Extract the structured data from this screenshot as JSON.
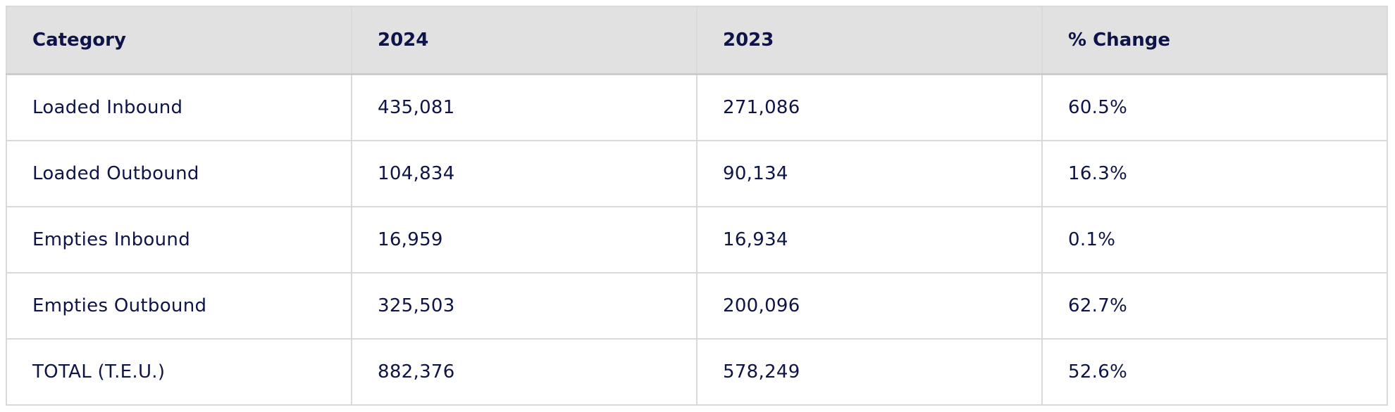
{
  "table": {
    "header": [
      "Category",
      "2024",
      "2023",
      "% Change"
    ],
    "rows": [
      [
        "Loaded Inbound",
        "435,081",
        "271,086",
        "60.5%"
      ],
      [
        "Loaded Outbound",
        "104,834",
        "90,134",
        "16.3%"
      ],
      [
        "Empties Inbound",
        "16,959",
        "16,934",
        "0.1%"
      ],
      [
        "Empties Outbound",
        "325,503",
        "200,096",
        "62.7%"
      ],
      [
        "TOTAL (T.E.U.)",
        "882,376",
        "578,249",
        "52.6%"
      ]
    ]
  }
}
